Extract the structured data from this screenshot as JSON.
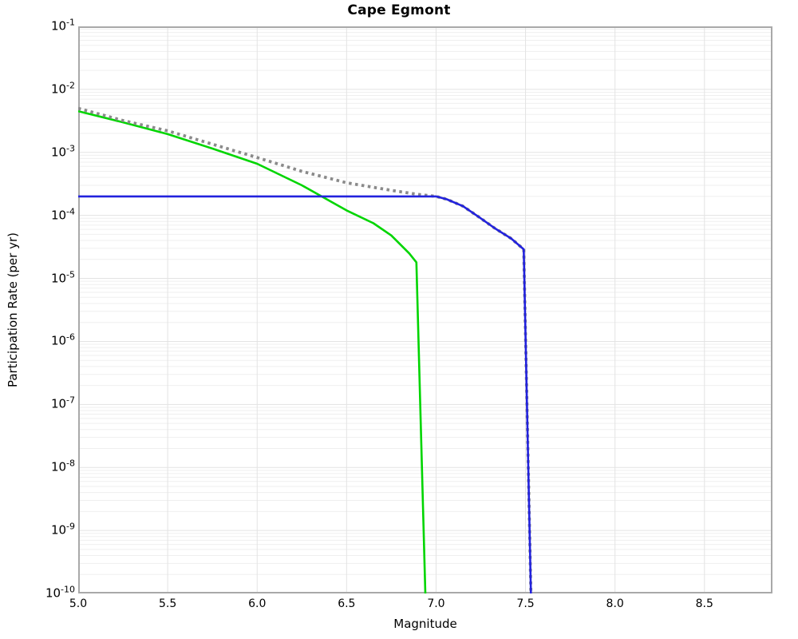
{
  "title": "Cape Egmont",
  "axes": {
    "xlabel": "Magnitude",
    "ylabel": "Participation Rate (per yr)",
    "x_tick_values": [
      5.0,
      5.5,
      6.0,
      6.5,
      7.0,
      7.5,
      8.0,
      8.5
    ],
    "x_tick_labels": [
      "5.0",
      "5.5",
      "6.0",
      "6.5",
      "7.0",
      "7.5",
      "8.0",
      "8.5"
    ],
    "y_tick_exponents": [
      -1,
      -2,
      -3,
      -4,
      -5,
      -6,
      -7,
      -8,
      -9,
      -10
    ],
    "y_tick_labels": [
      "10^-1",
      "10^-2",
      "10^-3",
      "10^-4",
      "10^-5",
      "10^-6",
      "10^-7",
      "10^-8",
      "10^-9",
      "10^-10"
    ]
  },
  "style": {
    "spine_color": "#a9a9a9",
    "grid_major_color": "#e3e3e3",
    "grid_minor_color": "#efefef",
    "background": "#ffffff"
  },
  "chart_data": {
    "type": "line",
    "title": "Cape Egmont",
    "xlabel": "Magnitude",
    "ylabel": "Participation Rate (per yr)",
    "x_axis": {
      "min": 5.0,
      "max": 8.88,
      "ticks": [
        5.0,
        5.5,
        6.0,
        6.5,
        7.0,
        7.5,
        8.0,
        8.5
      ]
    },
    "y_axis": {
      "scale": "log",
      "min": 1e-10,
      "max": 0.1,
      "decades": 9
    },
    "grid": {
      "vertical_at": [
        5.5,
        6.0,
        6.5,
        7.0,
        7.5,
        8.0,
        8.5
      ],
      "horizontal": "log-decades-with-minors"
    },
    "legend": "none",
    "series": [
      {
        "name": "gray-dotted-curve",
        "color": "#8a8a8a",
        "style": "dotted",
        "width": 3.8,
        "points": [
          [
            5.0,
            0.005
          ],
          [
            5.25,
            0.0032
          ],
          [
            5.5,
            0.0022
          ],
          [
            5.75,
            0.00135
          ],
          [
            6.0,
            0.00083
          ],
          [
            6.25,
            0.0005
          ],
          [
            6.5,
            0.00033
          ],
          [
            6.75,
            0.00025
          ],
          [
            6.9,
            0.000215
          ],
          [
            7.0,
            0.0002
          ],
          [
            7.06,
            0.00018
          ],
          [
            7.15,
            0.00014
          ],
          [
            7.24,
            9.4e-05
          ],
          [
            7.33,
            6.2e-05
          ],
          [
            7.42,
            4.3e-05
          ],
          [
            7.49,
            2.9e-05
          ],
          [
            7.53,
            1e-10
          ]
        ]
      },
      {
        "name": "green-solid-curve",
        "color": "#00d500",
        "style": "solid",
        "width": 2.6,
        "points": [
          [
            5.0,
            0.0045
          ],
          [
            5.25,
            0.003
          ],
          [
            5.5,
            0.00195
          ],
          [
            5.75,
            0.00115
          ],
          [
            6.0,
            0.00066
          ],
          [
            6.25,
            0.0003
          ],
          [
            6.5,
            0.00012
          ],
          [
            6.65,
            7.5e-05
          ],
          [
            6.75,
            4.8e-05
          ],
          [
            6.85,
            2.5e-05
          ],
          [
            6.89,
            1.8e-05
          ],
          [
            6.94,
            1e-10
          ]
        ]
      },
      {
        "name": "blue-solid-curve",
        "color": "#2222dd",
        "style": "solid",
        "width": 2.6,
        "points": [
          [
            5.0,
            0.0002
          ],
          [
            7.0,
            0.0002
          ],
          [
            7.06,
            0.00018
          ],
          [
            7.15,
            0.00014
          ],
          [
            7.24,
            9.4e-05
          ],
          [
            7.33,
            6.2e-05
          ],
          [
            7.42,
            4.3e-05
          ],
          [
            7.49,
            2.9e-05
          ],
          [
            7.53,
            1e-10
          ]
        ]
      }
    ]
  }
}
